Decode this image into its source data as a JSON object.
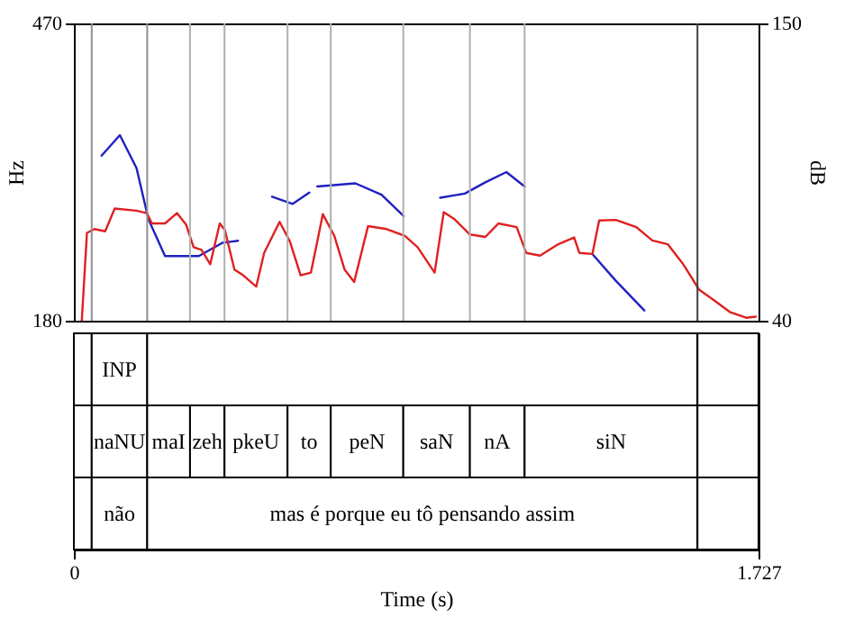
{
  "chart_data": [
    {
      "type": "line",
      "ylabel": "Hz",
      "y2label": "dB",
      "xlim": [
        0,
        1.727
      ],
      "ylim": [
        180,
        470
      ],
      "yticks": [
        180,
        470
      ],
      "y2lim": [
        40,
        150
      ],
      "y2ticks": [
        40,
        150
      ],
      "tick_labels": "y",
      "line_style": "solid",
      "series": [
        {
          "color": "#2020c0",
          "x": [
            0.07,
            0.116,
            0.158,
            0.188,
            0.23,
            0.315,
            0.375,
            0.414,
            0.457,
            0.5,
            0.552,
            0.594,
            0.604,
            0.614,
            0.71,
            0.776,
            0.832,
            0.878,
            0.924,
            0.986,
            1.038,
            1.091,
            1.137,
            1.22,
            1.308,
            1.367,
            1.439
          ],
          "values": [
            341,
            361,
            329,
            279,
            243,
            243,
            256,
            258,
            null,
            301,
            294,
            305,
            null,
            311,
            314,
            303,
            282,
            null,
            300,
            304,
            315,
            325,
            311,
            null,
            245,
            219,
            190
          ]
        },
        {
          "color": "#e02020",
          "axis": "y2",
          "x": [
            0.02,
            0.033,
            0.052,
            0.079,
            0.103,
            0.158,
            0.184,
            0.197,
            0.23,
            0.26,
            0.283,
            0.302,
            0.322,
            0.344,
            0.368,
            0.381,
            0.405,
            0.427,
            0.46,
            0.48,
            0.519,
            0.545,
            0.572,
            0.598,
            0.628,
            0.657,
            0.683,
            0.707,
            0.742,
            0.789,
            0.835,
            0.867,
            0.91,
            0.933,
            0.959,
            0.999,
            1.038,
            1.071,
            1.117,
            1.141,
            1.176,
            1.222,
            1.262,
            1.275,
            1.308,
            1.325,
            1.367,
            1.419,
            1.459,
            1.498,
            1.537,
            1.577,
            1.617,
            1.656,
            1.696,
            1.72
          ],
          "values": [
            40.0,
            72.5,
            73.9,
            73.1,
            81.5,
            80.7,
            79.8,
            76.0,
            76.0,
            79.8,
            75.6,
            67.2,
            66.2,
            60.9,
            76.0,
            73.5,
            58.9,
            56.8,
            52.6,
            65.1,
            76.6,
            69.3,
            56.8,
            57.8,
            79.4,
            71.4,
            58.9,
            54.3,
            75.0,
            73.9,
            71.4,
            67.2,
            57.8,
            80.2,
            77.7,
            71.9,
            71.0,
            76.0,
            74.6,
            65.1,
            64.1,
            68.3,
            70.8,
            65.1,
            64.7,
            77.1,
            77.3,
            74.6,
            69.7,
            68.3,
            60.9,
            51.5,
            47.3,
            43.1,
            41.1,
            41.5
          ]
        }
      ],
      "ref_lines": [
        {
          "axis": "x",
          "value": 0.045,
          "color": "#909090"
        },
        {
          "axis": "x",
          "value": 0.185,
          "color": "#909090"
        },
        {
          "axis": "x",
          "value": 0.293,
          "color": "#b0b0b0"
        },
        {
          "axis": "x",
          "value": 0.38,
          "color": "#b0b0b0"
        },
        {
          "axis": "x",
          "value": 0.539,
          "color": "#b0b0b0"
        },
        {
          "axis": "x",
          "value": 0.648,
          "color": "#b0b0b0"
        },
        {
          "axis": "x",
          "value": 0.831,
          "color": "#b0b0b0"
        },
        {
          "axis": "x",
          "value": 0.999,
          "color": "#b0b0b0"
        },
        {
          "axis": "x",
          "value": 1.137,
          "color": "#b0b0b0"
        },
        {
          "axis": "x",
          "value": 1.573,
          "color": "#404040"
        }
      ]
    },
    {
      "type": "bar",
      "orientation": "horizontal",
      "stacked": true,
      "xlabel": "Time (s)",
      "xlim": [
        0,
        1.727
      ],
      "xticks": [
        0,
        1.727
      ],
      "categories": [
        null,
        null,
        null
      ],
      "tick_labels": "x",
      "series": [
        {
          "color": "#ffffff",
          "values": [
            0.045,
            0.045,
            0.045
          ],
          "value_labels": [
            null,
            null,
            null
          ]
        },
        {
          "color": "#ffffff",
          "values": [
            0.14,
            0.14,
            0.14
          ],
          "value_labels": [
            "INP",
            "naNU",
            "não"
          ]
        },
        {
          "color": "#ffffff",
          "values": [
            1.388,
            0.108,
            1.388
          ],
          "value_labels": [
            null,
            "maI",
            "mas é porque eu tô pensando assim"
          ]
        },
        {
          "color": "#ffffff",
          "values": [
            0.154,
            0.087,
            0.154
          ],
          "value_labels": [
            null,
            "zeh",
            null
          ]
        },
        {
          "color": "#ffffff",
          "values": [
            null,
            0.159,
            null
          ],
          "value_labels": [
            null,
            "pkeU",
            null
          ]
        },
        {
          "color": "#ffffff",
          "values": [
            null,
            0.109,
            null
          ],
          "value_labels": [
            null,
            "to",
            null
          ]
        },
        {
          "color": "#ffffff",
          "values": [
            null,
            0.183,
            null
          ],
          "value_labels": [
            null,
            "peN",
            null
          ]
        },
        {
          "color": "#ffffff",
          "values": [
            null,
            0.168,
            null
          ],
          "value_labels": [
            null,
            "saN",
            null
          ]
        },
        {
          "color": "#ffffff",
          "values": [
            null,
            0.138,
            null
          ],
          "value_labels": [
            null,
            "nA",
            null
          ]
        },
        {
          "color": "#ffffff",
          "values": [
            null,
            0.436,
            null
          ],
          "value_labels": [
            null,
            "siN",
            null
          ]
        },
        {
          "color": "#ffffff",
          "values": [
            null,
            0.154,
            null
          ],
          "value_labels": [
            null,
            null,
            null
          ]
        }
      ]
    }
  ]
}
